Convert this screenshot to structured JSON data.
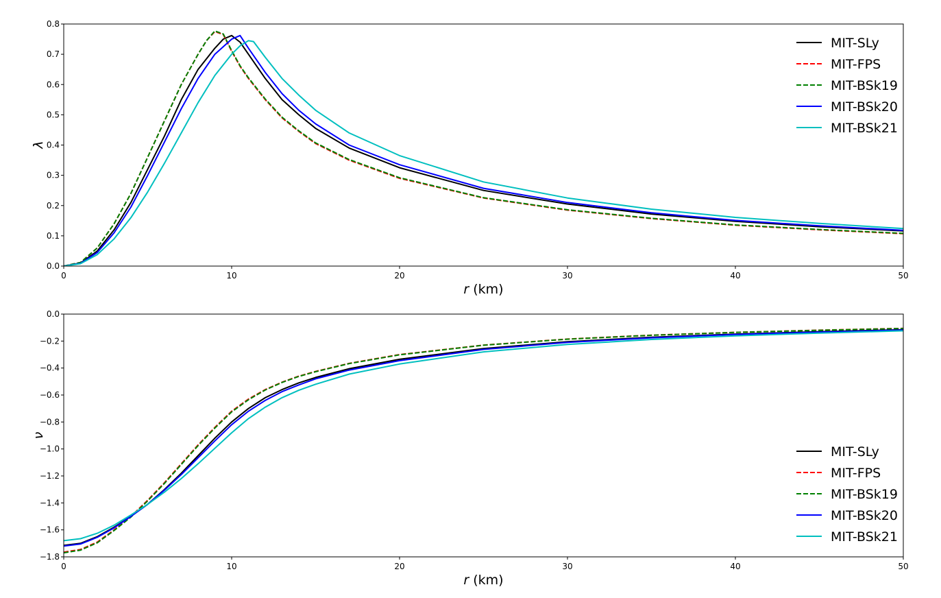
{
  "colors": {
    "MIT-SLy": "#000000",
    "MIT-FPS": "#ff0000",
    "MIT-BSk19": "#008000",
    "MIT-BSk20": "#0000ff",
    "MIT-BSk21": "#00bfbf"
  },
  "chart_data": [
    {
      "type": "line",
      "title": "",
      "xlabel": "r (km)",
      "ylabel": "λ",
      "xlim": [
        0,
        50
      ],
      "ylim": [
        0,
        0.8
      ],
      "xticks": [
        "0",
        "10",
        "20",
        "30",
        "40",
        "50"
      ],
      "yticks": [
        "0.0",
        "0.1",
        "0.2",
        "0.3",
        "0.4",
        "0.5",
        "0.6",
        "0.7",
        "0.8"
      ],
      "legend_position": "top-right",
      "grid": false,
      "series": [
        {
          "name": "MIT-SLy",
          "style": "solid",
          "x": [
            0,
            1,
            2,
            3,
            4,
            5,
            6,
            7,
            8,
            9,
            9.5,
            10,
            10.5,
            11,
            12,
            13,
            14,
            15,
            17,
            20,
            25,
            30,
            35,
            40,
            45,
            50
          ],
          "y": [
            0,
            0.01,
            0.05,
            0.12,
            0.21,
            0.32,
            0.43,
            0.55,
            0.65,
            0.72,
            0.75,
            0.762,
            0.74,
            0.7,
            0.62,
            0.55,
            0.5,
            0.455,
            0.39,
            0.325,
            0.25,
            0.205,
            0.172,
            0.148,
            0.13,
            0.116
          ]
        },
        {
          "name": "MIT-FPS",
          "style": "dashed",
          "x": [
            0,
            1,
            2,
            3,
            4,
            5,
            6,
            7,
            8,
            8.5,
            9,
            9.5,
            10,
            10.5,
            11,
            12,
            13,
            14,
            15,
            17,
            20,
            25,
            30,
            35,
            40,
            45,
            50
          ],
          "y": [
            0,
            0.012,
            0.06,
            0.14,
            0.24,
            0.36,
            0.48,
            0.6,
            0.7,
            0.745,
            0.775,
            0.765,
            0.71,
            0.66,
            0.62,
            0.55,
            0.49,
            0.445,
            0.405,
            0.35,
            0.29,
            0.225,
            0.185,
            0.157,
            0.135,
            0.12,
            0.107
          ]
        },
        {
          "name": "MIT-BSk19",
          "style": "dashed",
          "x": [
            0,
            1,
            2,
            3,
            4,
            5,
            6,
            7,
            8,
            8.5,
            9,
            9.5,
            10,
            10.5,
            11,
            12,
            13,
            14,
            15,
            17,
            20,
            25,
            30,
            35,
            40,
            45,
            50
          ],
          "y": [
            0,
            0.012,
            0.06,
            0.14,
            0.24,
            0.36,
            0.48,
            0.6,
            0.7,
            0.745,
            0.777,
            0.767,
            0.712,
            0.662,
            0.622,
            0.552,
            0.492,
            0.447,
            0.407,
            0.352,
            0.292,
            0.226,
            0.186,
            0.158,
            0.136,
            0.121,
            0.108
          ]
        },
        {
          "name": "MIT-BSk20",
          "style": "solid",
          "x": [
            0,
            1,
            2,
            3,
            4,
            5,
            6,
            7,
            8,
            9,
            10,
            10.5,
            11,
            12,
            13,
            14,
            15,
            17,
            20,
            25,
            30,
            35,
            40,
            45,
            50
          ],
          "y": [
            0,
            0.009,
            0.045,
            0.11,
            0.195,
            0.3,
            0.41,
            0.52,
            0.62,
            0.7,
            0.75,
            0.762,
            0.72,
            0.64,
            0.57,
            0.515,
            0.47,
            0.4,
            0.335,
            0.257,
            0.21,
            0.176,
            0.151,
            0.133,
            0.118
          ]
        },
        {
          "name": "MIT-BSk21",
          "style": "solid",
          "x": [
            0,
            1,
            2,
            3,
            4,
            5,
            6,
            7,
            8,
            9,
            10,
            10.5,
            11,
            11.3,
            12,
            13,
            14,
            15,
            17,
            20,
            25,
            30,
            35,
            40,
            45,
            50
          ],
          "y": [
            0,
            0.008,
            0.038,
            0.09,
            0.16,
            0.245,
            0.34,
            0.44,
            0.54,
            0.63,
            0.7,
            0.728,
            0.745,
            0.742,
            0.69,
            0.62,
            0.565,
            0.515,
            0.44,
            0.365,
            0.278,
            0.225,
            0.188,
            0.161,
            0.141,
            0.124
          ]
        }
      ]
    },
    {
      "type": "line",
      "title": "",
      "xlabel": "r (km)",
      "ylabel": "ν",
      "xlim": [
        0,
        50
      ],
      "ylim": [
        -1.8,
        0
      ],
      "xticks": [
        "0",
        "10",
        "20",
        "30",
        "40",
        "50"
      ],
      "yticks": [
        "0.0",
        "−0.2",
        "−0.4",
        "−0.6",
        "−0.8",
        "−1.0",
        "−1.2",
        "−1.4",
        "−1.6",
        "−1.8"
      ],
      "legend_position": "lower-right",
      "grid": false,
      "series": [
        {
          "name": "MIT-SLy",
          "style": "solid",
          "x": [
            0,
            1,
            2,
            3,
            4,
            5,
            6,
            7,
            8,
            9,
            10,
            11,
            12,
            13,
            14,
            15,
            17,
            20,
            25,
            30,
            35,
            40,
            45,
            50
          ],
          "y": [
            -1.715,
            -1.7,
            -1.65,
            -1.58,
            -1.5,
            -1.41,
            -1.3,
            -1.18,
            -1.05,
            -0.92,
            -0.8,
            -0.7,
            -0.62,
            -0.56,
            -0.51,
            -0.47,
            -0.405,
            -0.335,
            -0.255,
            -0.205,
            -0.172,
            -0.148,
            -0.13,
            -0.116
          ]
        },
        {
          "name": "MIT-FPS",
          "style": "dashed",
          "x": [
            0,
            1,
            2,
            3,
            4,
            5,
            6,
            7,
            8,
            9,
            10,
            11,
            12,
            13,
            14,
            15,
            17,
            20,
            25,
            30,
            35,
            40,
            45,
            50
          ],
          "y": [
            -1.765,
            -1.745,
            -1.69,
            -1.6,
            -1.5,
            -1.38,
            -1.25,
            -1.11,
            -0.97,
            -0.84,
            -0.72,
            -0.63,
            -0.56,
            -0.505,
            -0.46,
            -0.425,
            -0.365,
            -0.3,
            -0.23,
            -0.185,
            -0.156,
            -0.135,
            -0.119,
            -0.106
          ]
        },
        {
          "name": "MIT-BSk19",
          "style": "dashed",
          "x": [
            0,
            1,
            2,
            3,
            4,
            5,
            6,
            7,
            8,
            9,
            10,
            11,
            12,
            13,
            14,
            15,
            17,
            20,
            25,
            30,
            35,
            40,
            45,
            50
          ],
          "y": [
            -1.77,
            -1.75,
            -1.695,
            -1.605,
            -1.505,
            -1.385,
            -1.255,
            -1.115,
            -0.975,
            -0.845,
            -0.725,
            -0.635,
            -0.563,
            -0.507,
            -0.462,
            -0.427,
            -0.367,
            -0.302,
            -0.231,
            -0.186,
            -0.157,
            -0.136,
            -0.12,
            -0.107
          ]
        },
        {
          "name": "MIT-BSk20",
          "style": "solid",
          "x": [
            0,
            1,
            2,
            3,
            4,
            5,
            6,
            7,
            8,
            9,
            10,
            11,
            12,
            13,
            14,
            15,
            17,
            20,
            25,
            30,
            35,
            40,
            45,
            50
          ],
          "y": [
            -1.72,
            -1.705,
            -1.655,
            -1.585,
            -1.5,
            -1.41,
            -1.305,
            -1.19,
            -1.065,
            -0.94,
            -0.82,
            -0.72,
            -0.64,
            -0.575,
            -0.525,
            -0.48,
            -0.415,
            -0.345,
            -0.262,
            -0.21,
            -0.176,
            -0.151,
            -0.133,
            -0.118
          ]
        },
        {
          "name": "MIT-BSk21",
          "style": "solid",
          "x": [
            0,
            1,
            2,
            3,
            4,
            5,
            6,
            7,
            8,
            9,
            10,
            11,
            12,
            13,
            14,
            15,
            17,
            20,
            25,
            30,
            35,
            40,
            45,
            50
          ],
          "y": [
            -1.68,
            -1.665,
            -1.625,
            -1.565,
            -1.49,
            -1.41,
            -1.32,
            -1.22,
            -1.11,
            -0.995,
            -0.88,
            -0.775,
            -0.69,
            -0.62,
            -0.565,
            -0.52,
            -0.445,
            -0.37,
            -0.28,
            -0.225,
            -0.188,
            -0.161,
            -0.141,
            -0.124
          ]
        }
      ]
    }
  ]
}
